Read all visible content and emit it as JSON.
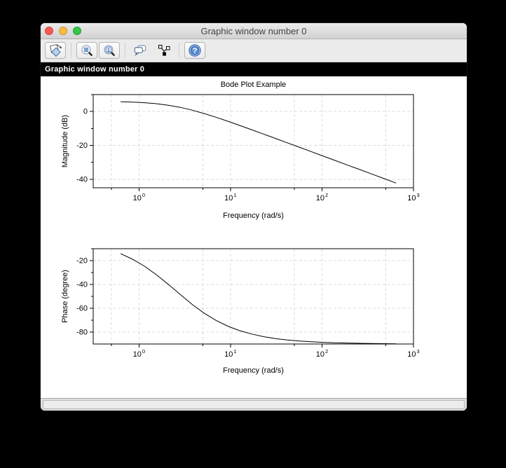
{
  "window": {
    "title": "Graphic window number 0",
    "header_bar_label": "Graphic window number 0",
    "traffic_lights": [
      {
        "name": "close",
        "color": "#fc5753"
      },
      {
        "name": "minimize",
        "color": "#fdbc40"
      },
      {
        "name": "zoom",
        "color": "#33c748"
      }
    ]
  },
  "toolbar": {
    "buttons": [
      {
        "id": "rotate",
        "icon": "rotate-3d-icon"
      },
      {
        "id": "zoom-area",
        "icon": "zoom-area-icon"
      },
      {
        "id": "initial-view",
        "icon": "zoom-reset-icon",
        "glyph": "1"
      },
      {
        "id": "edit-graphics",
        "icon": "speech-bubbles-icon"
      },
      {
        "id": "datatip",
        "icon": "node-graph-icon"
      },
      {
        "id": "help",
        "icon": "help-circle-icon",
        "glyph": "?"
      }
    ]
  },
  "colors": {
    "desktop_background": "#000000",
    "canvas_background": "#ffffff",
    "header_bar_background": "#000000",
    "header_bar_text": "#ffffff",
    "grid": "#dcdcdc",
    "curve": "#000000"
  },
  "chart_data": [
    {
      "type": "line",
      "title": "Bode Plot Example",
      "xlabel": "Frequency (rad/s)",
      "ylabel": "Magnitude (dB)",
      "xscale": "log",
      "xlim": [
        0.3162,
        1000
      ],
      "ylim": [
        -45,
        10
      ],
      "yticks": [
        0,
        -20,
        -40
      ],
      "ysubticks": [
        10,
        -10,
        -30
      ],
      "xtick_exponents": [
        0,
        1,
        2,
        3
      ],
      "xsubticks": [
        0.5,
        5,
        50,
        500
      ],
      "grid": true,
      "series": [
        {
          "name": "magnitude",
          "x": [
            0.63,
            0.85,
            1.15,
            1.55,
            2.09,
            2.82,
            3.8,
            5.13,
            6.92,
            9.33,
            12.59,
            16.98,
            22.91,
            30.9,
            41.69,
            56.23,
            75.86,
            102.33,
            138.04,
            186.21,
            251.19,
            338.84,
            457.09,
            645.65
          ],
          "y": [
            5.75,
            5.54,
            5.19,
            4.61,
            3.72,
            2.46,
            0.82,
            -1.15,
            -3.35,
            -5.72,
            -8.19,
            -10.71,
            -13.27,
            -15.85,
            -18.44,
            -21.03,
            -23.62,
            -26.22,
            -28.82,
            -31.42,
            -34.02,
            -36.62,
            -39.22,
            -42.22
          ]
        }
      ]
    },
    {
      "type": "line",
      "title": "",
      "xlabel": "Frequency (rad/s)",
      "ylabel": "Phase (degree)",
      "xscale": "log",
      "xlim": [
        0.3162,
        1000
      ],
      "ylim": [
        -90,
        -10
      ],
      "yticks": [
        -20,
        -40,
        -60,
        -80
      ],
      "ysubticks": [
        -10,
        -30,
        -50,
        -70
      ],
      "xtick_exponents": [
        0,
        1,
        2,
        3
      ],
      "xsubticks": [
        0.5,
        5,
        50,
        500
      ],
      "grid": true,
      "series": [
        {
          "name": "phase",
          "x": [
            0.63,
            0.85,
            1.15,
            1.55,
            2.09,
            2.82,
            3.8,
            5.13,
            6.92,
            9.33,
            12.59,
            16.98,
            22.91,
            30.9,
            41.69,
            56.23,
            75.86,
            102.33,
            138.04,
            186.21,
            251.19,
            338.84,
            457.09,
            645.65
          ],
          "y": [
            -14.2,
            -18.8,
            -24.7,
            -31.8,
            -39.9,
            -48.4,
            -56.7,
            -64.0,
            -70.1,
            -75.0,
            -78.8,
            -81.6,
            -83.8,
            -85.4,
            -86.6,
            -87.5,
            -88.1,
            -88.6,
            -89.0,
            -89.2,
            -89.4,
            -89.6,
            -89.7,
            -89.8
          ]
        }
      ]
    }
  ]
}
